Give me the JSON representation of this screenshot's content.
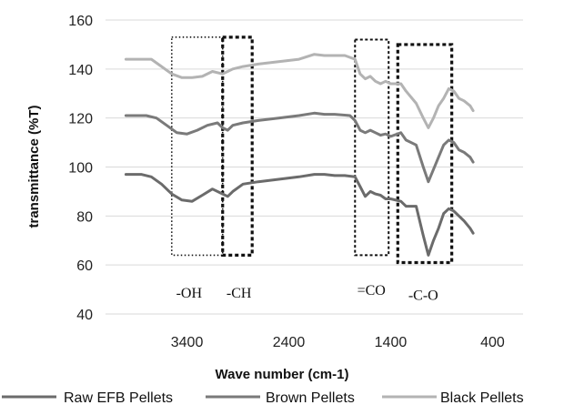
{
  "chart_data": {
    "type": "line",
    "title": "",
    "xlabel": "Wave number (cm-1)",
    "ylabel": "transmittance (%T)",
    "xlim": [
      4200,
      100
    ],
    "x_reversed": true,
    "ylim": [
      40,
      160
    ],
    "xticks": [
      "3400",
      "2400",
      "1400",
      "400"
    ],
    "yticks": [
      "40",
      "60",
      "80",
      "100",
      "120",
      "140",
      "160"
    ],
    "grid": "horizontal",
    "legend_position": "bottom",
    "series": [
      {
        "name": "Raw EFB Pellets",
        "color": "#6b6b6b",
        "points": [
          [
            4000,
            97
          ],
          [
            3850,
            97
          ],
          [
            3750,
            96
          ],
          [
            3650,
            93
          ],
          [
            3550,
            89
          ],
          [
            3450,
            86.5
          ],
          [
            3350,
            86
          ],
          [
            3250,
            88.5
          ],
          [
            3150,
            91
          ],
          [
            3050,
            89
          ],
          [
            3000,
            88
          ],
          [
            2950,
            90
          ],
          [
            2850,
            93
          ],
          [
            2700,
            94
          ],
          [
            2500,
            95
          ],
          [
            2300,
            96
          ],
          [
            2150,
            97
          ],
          [
            2050,
            97
          ],
          [
            1950,
            96.5
          ],
          [
            1850,
            96.5
          ],
          [
            1750,
            96
          ],
          [
            1700,
            92
          ],
          [
            1650,
            88
          ],
          [
            1600,
            90
          ],
          [
            1550,
            89
          ],
          [
            1500,
            88.5
          ],
          [
            1450,
            87
          ],
          [
            1400,
            87
          ],
          [
            1300,
            86
          ],
          [
            1250,
            84
          ],
          [
            1150,
            84
          ],
          [
            1080,
            72
          ],
          [
            1030,
            64
          ],
          [
            980,
            70
          ],
          [
            930,
            75
          ],
          [
            880,
            81
          ],
          [
            830,
            83
          ],
          [
            780,
            82
          ],
          [
            730,
            80
          ],
          [
            680,
            78
          ],
          [
            620,
            75
          ],
          [
            590,
            73
          ]
        ]
      },
      {
        "name": "Brown Pellets",
        "color": "#7a7a7a",
        "points": [
          [
            4000,
            121
          ],
          [
            3800,
            121
          ],
          [
            3700,
            120
          ],
          [
            3600,
            117
          ],
          [
            3500,
            114
          ],
          [
            3400,
            113.5
          ],
          [
            3300,
            115
          ],
          [
            3200,
            117
          ],
          [
            3100,
            118
          ],
          [
            3050,
            116
          ],
          [
            3000,
            115
          ],
          [
            2950,
            117
          ],
          [
            2850,
            118
          ],
          [
            2700,
            119
          ],
          [
            2500,
            120
          ],
          [
            2300,
            121
          ],
          [
            2150,
            122
          ],
          [
            2050,
            121.5
          ],
          [
            1950,
            121.5
          ],
          [
            1800,
            121
          ],
          [
            1750,
            119
          ],
          [
            1700,
            115
          ],
          [
            1650,
            114
          ],
          [
            1600,
            115
          ],
          [
            1550,
            114
          ],
          [
            1500,
            113
          ],
          [
            1450,
            113.5
          ],
          [
            1400,
            112.5
          ],
          [
            1300,
            114
          ],
          [
            1250,
            111
          ],
          [
            1150,
            109
          ],
          [
            1080,
            100
          ],
          [
            1030,
            94
          ],
          [
            980,
            99
          ],
          [
            930,
            104
          ],
          [
            880,
            109
          ],
          [
            830,
            111
          ],
          [
            780,
            110
          ],
          [
            730,
            107
          ],
          [
            680,
            106
          ],
          [
            620,
            104
          ],
          [
            590,
            102
          ]
        ]
      },
      {
        "name": "Black Pellets",
        "color": "#b3b3b3",
        "points": [
          [
            4000,
            144
          ],
          [
            3850,
            144
          ],
          [
            3750,
            144
          ],
          [
            3650,
            141
          ],
          [
            3550,
            138
          ],
          [
            3450,
            136.5
          ],
          [
            3350,
            136.5
          ],
          [
            3250,
            137
          ],
          [
            3150,
            139
          ],
          [
            3050,
            138
          ],
          [
            3000,
            139
          ],
          [
            2950,
            140
          ],
          [
            2850,
            141
          ],
          [
            2700,
            142
          ],
          [
            2500,
            143
          ],
          [
            2300,
            144
          ],
          [
            2150,
            146
          ],
          [
            2050,
            145.5
          ],
          [
            1950,
            145.5
          ],
          [
            1850,
            145.5
          ],
          [
            1750,
            144
          ],
          [
            1700,
            138
          ],
          [
            1650,
            136
          ],
          [
            1600,
            137
          ],
          [
            1550,
            135
          ],
          [
            1500,
            134
          ],
          [
            1450,
            135
          ],
          [
            1400,
            134
          ],
          [
            1300,
            134
          ],
          [
            1250,
            131
          ],
          [
            1150,
            126
          ],
          [
            1080,
            120
          ],
          [
            1030,
            116
          ],
          [
            980,
            120
          ],
          [
            930,
            125
          ],
          [
            880,
            128
          ],
          [
            830,
            132
          ],
          [
            780,
            131
          ],
          [
            730,
            128
          ],
          [
            680,
            127
          ],
          [
            620,
            125
          ],
          [
            590,
            123
          ]
        ]
      }
    ],
    "annotations": [
      {
        "label": "-OH",
        "box": {
          "x1": 3550,
          "x2": 3050,
          "y1": 64,
          "y2": 153
        },
        "style": "dotted",
        "label_at": [
          3380,
          49
        ]
      },
      {
        "label": "-CH",
        "box": {
          "x1": 3050,
          "x2": 2760,
          "y1": 64,
          "y2": 153
        },
        "style": "dashed-bold",
        "label_at": [
          2890,
          49
        ]
      },
      {
        "label": "=CO",
        "box": {
          "x1": 1750,
          "x2": 1420,
          "y1": 64,
          "y2": 152
        },
        "style": "dashed",
        "label_at": [
          1590,
          50
        ]
      },
      {
        "label": "-C-O",
        "box": {
          "x1": 1330,
          "x2": 800,
          "y1": 61,
          "y2": 150
        },
        "style": "dashed-bold",
        "label_at": [
          1080,
          48
        ]
      }
    ]
  }
}
